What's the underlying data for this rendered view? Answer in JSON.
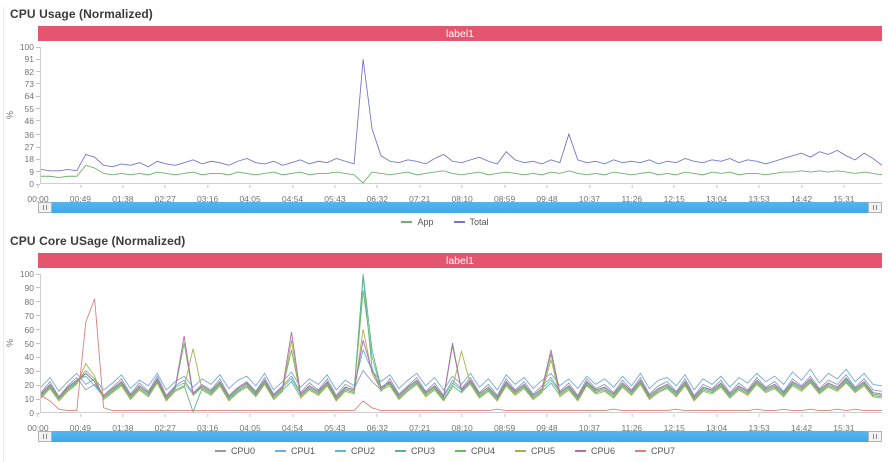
{
  "ui": {
    "banner_color": "#e4566e",
    "scrollbar_color": "#3fa9e8",
    "axis_color": "#cfcfcf",
    "title_color": "#3b3b3b",
    "tick_text_color": "#757575",
    "scrollbar_handle_icon": "drag-grip-icon"
  },
  "chart_data": [
    {
      "type": "line",
      "title": "CPU Usage (Normalized)",
      "banner": "label1",
      "xlabel": "",
      "ylabel": "%",
      "ylim": [
        0,
        100
      ],
      "grid": false,
      "legend_position": "bottom-center",
      "y_ticks": [
        100,
        91,
        82,
        73,
        64,
        55,
        46,
        36,
        27,
        18,
        9,
        0
      ],
      "x_ticks": [
        "00:00",
        "00:49",
        "01:38",
        "02:27",
        "03:16",
        "04:05",
        "04:54",
        "05:43",
        "06:32",
        "07:21",
        "08:10",
        "08:59",
        "09:48",
        "10:37",
        "11:26",
        "12:15",
        "13:04",
        "13:53",
        "14:42",
        "15:31"
      ],
      "x_tick_interval_minutes": 49,
      "x_max_minutes": 975,
      "series": [
        {
          "name": "App",
          "color": "#69b269",
          "values": [
            5,
            5,
            4,
            5,
            5,
            13,
            11,
            7,
            6,
            7,
            6,
            7,
            6,
            8,
            7,
            6,
            7,
            8,
            6,
            7,
            7,
            6,
            8,
            7,
            6,
            7,
            8,
            6,
            7,
            8,
            6,
            7,
            7,
            8,
            7,
            6,
            0,
            8,
            7,
            6,
            7,
            8,
            6,
            7,
            8,
            9,
            7,
            6,
            7,
            8,
            6,
            7,
            8,
            7,
            6,
            7,
            6,
            8,
            7,
            9,
            7,
            6,
            7,
            6,
            8,
            7,
            6,
            7,
            8,
            6,
            7,
            6,
            8,
            7,
            6,
            8,
            7,
            8,
            6,
            7,
            7,
            6,
            7,
            8,
            8,
            9,
            8,
            9,
            8,
            9,
            8,
            7,
            8,
            7,
            6
          ]
        },
        {
          "name": "Total",
          "color": "#7477c9",
          "values": [
            10,
            9,
            9,
            10,
            9,
            21,
            19,
            13,
            12,
            14,
            13,
            15,
            12,
            16,
            14,
            13,
            15,
            17,
            14,
            16,
            15,
            13,
            16,
            18,
            15,
            14,
            16,
            13,
            15,
            17,
            14,
            16,
            15,
            18,
            16,
            14,
            91,
            40,
            20,
            16,
            15,
            17,
            16,
            14,
            18,
            21,
            16,
            15,
            17,
            19,
            16,
            14,
            23,
            17,
            15,
            16,
            14,
            17,
            15,
            36,
            17,
            15,
            16,
            14,
            17,
            15,
            16,
            15,
            17,
            14,
            16,
            15,
            18,
            16,
            15,
            17,
            16,
            18,
            15,
            17,
            16,
            14,
            16,
            18,
            20,
            22,
            19,
            23,
            21,
            24,
            20,
            17,
            22,
            18,
            13
          ]
        }
      ]
    },
    {
      "type": "line",
      "title": "CPU Core USage (Normalized)",
      "banner": "label1",
      "xlabel": "",
      "ylabel": "%",
      "ylim": [
        0,
        100
      ],
      "grid": false,
      "legend_position": "bottom-center",
      "y_ticks": [
        100,
        90,
        80,
        70,
        60,
        50,
        40,
        30,
        20,
        10,
        0
      ],
      "x_ticks": [
        "00:00",
        "00:49",
        "01:38",
        "02:27",
        "03:16",
        "04:05",
        "04:54",
        "05:43",
        "06:32",
        "07:21",
        "08:10",
        "08:59",
        "09:48",
        "10:37",
        "11:26",
        "12:15",
        "13:04",
        "13:53",
        "14:42",
        "15:31"
      ],
      "x_tick_interval_minutes": 49,
      "x_max_minutes": 975,
      "series": [
        {
          "name": "CPU0",
          "color": "#8d9cb2",
          "values": [
            14,
            22,
            11,
            19,
            25,
            16,
            20,
            12,
            18,
            24,
            13,
            21,
            15,
            26,
            12,
            19,
            23,
            14,
            20,
            16,
            24,
            12,
            18,
            22,
            15,
            25,
            13,
            19,
            26,
            14,
            21,
            16,
            24,
            12,
            20,
            17,
            30,
            22,
            16,
            24,
            13,
            19,
            25,
            15,
            21,
            12,
            23,
            17,
            25,
            14,
            20,
            12,
            24,
            16,
            22,
            13,
            19,
            25,
            15,
            21,
            12,
            24,
            17,
            20,
            14,
            23,
            16,
            25,
            13,
            19,
            22,
            15,
            24,
            12,
            20,
            17,
            23,
            14,
            21,
            16,
            25,
            18,
            22,
            15,
            24,
            19,
            26,
            17,
            23,
            20,
            27,
            18,
            24,
            16,
            15
          ]
        },
        {
          "name": "CPU1",
          "color": "#74a9db",
          "values": [
            18,
            25,
            15,
            22,
            28,
            20,
            24,
            16,
            21,
            27,
            17,
            23,
            19,
            28,
            16,
            22,
            26,
            18,
            24,
            20,
            27,
            17,
            23,
            26,
            19,
            28,
            16,
            22,
            29,
            18,
            24,
            20,
            27,
            16,
            23,
            19,
            45,
            30,
            22,
            27,
            17,
            23,
            28,
            19,
            25,
            16,
            26,
            20,
            28,
            18,
            24,
            16,
            27,
            20,
            25,
            17,
            23,
            28,
            19,
            24,
            17,
            26,
            20,
            24,
            18,
            26,
            19,
            28,
            17,
            23,
            25,
            19,
            27,
            16,
            24,
            20,
            26,
            18,
            25,
            21,
            28,
            22,
            26,
            20,
            29,
            23,
            31,
            21,
            28,
            24,
            31,
            22,
            28,
            20,
            19
          ]
        },
        {
          "name": "CPU2",
          "color": "#58bdc0",
          "values": [
            13,
            20,
            10,
            17,
            23,
            26,
            19,
            11,
            16,
            22,
            12,
            19,
            14,
            24,
            11,
            18,
            21,
            13,
            19,
            15,
            22,
            11,
            17,
            21,
            14,
            23,
            12,
            18,
            24,
            13,
            19,
            15,
            22,
            11,
            18,
            16,
            98,
            32,
            15,
            22,
            12,
            18,
            23,
            14,
            19,
            11,
            21,
            16,
            23,
            13,
            18,
            11,
            22,
            15,
            20,
            12,
            17,
            23,
            14,
            19,
            11,
            22,
            16,
            18,
            13,
            21,
            15,
            23,
            12,
            17,
            20,
            14,
            22,
            11,
            18,
            16,
            21,
            13,
            19,
            15,
            23,
            17,
            20,
            14,
            22,
            18,
            24,
            16,
            21,
            18,
            25,
            17,
            22,
            14,
            13
          ]
        },
        {
          "name": "CPU3",
          "color": "#5fb28c",
          "values": [
            11,
            18,
            9,
            16,
            21,
            28,
            22,
            10,
            15,
            20,
            10,
            17,
            12,
            22,
            9,
            16,
            19,
            0,
            17,
            13,
            20,
            9,
            15,
            19,
            12,
            21,
            10,
            16,
            22,
            11,
            17,
            13,
            20,
            9,
            16,
            14,
            100,
            45,
            18,
            20,
            10,
            16,
            21,
            12,
            17,
            9,
            19,
            14,
            21,
            11,
            16,
            9,
            20,
            13,
            18,
            10,
            15,
            21,
            12,
            17,
            9,
            20,
            14,
            16,
            11,
            19,
            13,
            21,
            10,
            15,
            18,
            12,
            20,
            9,
            16,
            14,
            19,
            11,
            17,
            13,
            21,
            15,
            18,
            12,
            20,
            16,
            22,
            14,
            19,
            16,
            22,
            15,
            20,
            12,
            11
          ]
        },
        {
          "name": "CPU4",
          "color": "#6eb863",
          "values": [
            12,
            19,
            10,
            17,
            22,
            30,
            24,
            11,
            16,
            21,
            11,
            18,
            13,
            23,
            10,
            17,
            50,
            12,
            18,
            14,
            21,
            10,
            16,
            20,
            13,
            22,
            11,
            17,
            45,
            12,
            18,
            14,
            21,
            10,
            17,
            15,
            88,
            40,
            17,
            21,
            11,
            17,
            22,
            13,
            18,
            10,
            48,
            15,
            22,
            12,
            17,
            10,
            21,
            14,
            19,
            11,
            16,
            42,
            13,
            18,
            10,
            21,
            15,
            17,
            12,
            20,
            14,
            22,
            11,
            16,
            19,
            13,
            21,
            10,
            17,
            15,
            20,
            12,
            18,
            14,
            22,
            16,
            19,
            13,
            21,
            17,
            23,
            15,
            20,
            17,
            23,
            16,
            21,
            13,
            12
          ]
        },
        {
          "name": "CPU5",
          "color": "#a9b14e",
          "values": [
            10,
            17,
            8,
            15,
            20,
            35,
            26,
            9,
            14,
            19,
            9,
            16,
            11,
            21,
            8,
            15,
            18,
            46,
            16,
            12,
            19,
            8,
            14,
            18,
            11,
            20,
            9,
            15,
            52,
            10,
            16,
            12,
            19,
            8,
            15,
            13,
            60,
            28,
            16,
            19,
            9,
            15,
            20,
            11,
            16,
            8,
            18,
            44,
            20,
            10,
            15,
            8,
            19,
            12,
            17,
            9,
            14,
            38,
            11,
            16,
            8,
            19,
            13,
            15,
            10,
            18,
            12,
            20,
            9,
            14,
            17,
            11,
            19,
            8,
            15,
            13,
            18,
            10,
            16,
            12,
            20,
            14,
            17,
            11,
            19,
            15,
            21,
            13,
            18,
            15,
            21,
            14,
            19,
            11,
            10
          ]
        },
        {
          "name": "CPU6",
          "color": "#b56ab2",
          "values": [
            13,
            20,
            11,
            18,
            23,
            28,
            22,
            12,
            17,
            22,
            12,
            19,
            14,
            24,
            11,
            18,
            55,
            13,
            19,
            15,
            22,
            11,
            17,
            21,
            14,
            23,
            12,
            18,
            58,
            13,
            19,
            15,
            22,
            11,
            18,
            16,
            52,
            30,
            18,
            22,
            12,
            18,
            23,
            14,
            19,
            11,
            50,
            16,
            23,
            13,
            18,
            11,
            22,
            15,
            20,
            12,
            17,
            45,
            14,
            19,
            11,
            22,
            16,
            18,
            13,
            21,
            15,
            23,
            12,
            17,
            20,
            14,
            22,
            11,
            18,
            16,
            21,
            13,
            19,
            15,
            23,
            17,
            20,
            14,
            22,
            18,
            24,
            16,
            21,
            18,
            24,
            17,
            22,
            14,
            13
          ]
        },
        {
          "name": "CPU7",
          "color": "#d8827a",
          "values": [
            12,
            8,
            2,
            1,
            1,
            65,
            82,
            3,
            1,
            1,
            1,
            1,
            1,
            1,
            1,
            1,
            1,
            1,
            1,
            1,
            1,
            1,
            1,
            1,
            1,
            1,
            1,
            1,
            1,
            1,
            1,
            1,
            1,
            1,
            1,
            1,
            8,
            3,
            1,
            1,
            1,
            1,
            1,
            1,
            1,
            1,
            1,
            1,
            1,
            1,
            1,
            2,
            1,
            1,
            1,
            1,
            1,
            1,
            1,
            1,
            1,
            1,
            1,
            1,
            2,
            1,
            1,
            1,
            1,
            1,
            1,
            2,
            1,
            1,
            1,
            1,
            1,
            1,
            1,
            1,
            2,
            1,
            1,
            2,
            1,
            1,
            2,
            1,
            1,
            2,
            1,
            2,
            1,
            1,
            1
          ]
        }
      ]
    }
  ]
}
